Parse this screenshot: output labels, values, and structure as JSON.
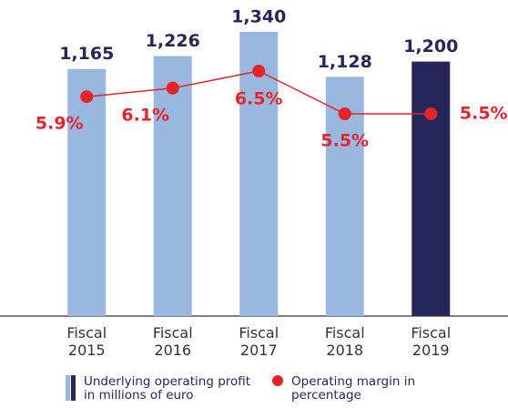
{
  "chart_data": {
    "type": "bar",
    "categories": [
      "Fiscal 2015",
      "Fiscal 2016",
      "Fiscal 2017",
      "Fiscal 2018",
      "Fiscal 2019"
    ],
    "ylim": [
      0,
      1340
    ],
    "y2lim": [
      5,
      7
    ],
    "series": [
      {
        "name": "Underlying operating profit in millions of euro",
        "type": "bar",
        "colors": [
          "#9ab7df",
          "#9ab7df",
          "#9ab7df",
          "#9ab7df",
          "#27265a"
        ],
        "values": [
          1165,
          1226,
          1340,
          1128,
          1200
        ],
        "value_labels": [
          "1,165",
          "1,226",
          "1,340",
          "1,128",
          "1,200"
        ]
      },
      {
        "name": "Operating margin in percentage",
        "type": "line",
        "axis": "y2",
        "color": "#e3242b",
        "values": [
          5.9,
          6.1,
          6.5,
          5.5,
          5.5
        ],
        "value_labels": [
          "5.9%",
          "6.1%",
          "6.5%",
          "5.5%",
          "5.5%"
        ]
      }
    ]
  }
}
